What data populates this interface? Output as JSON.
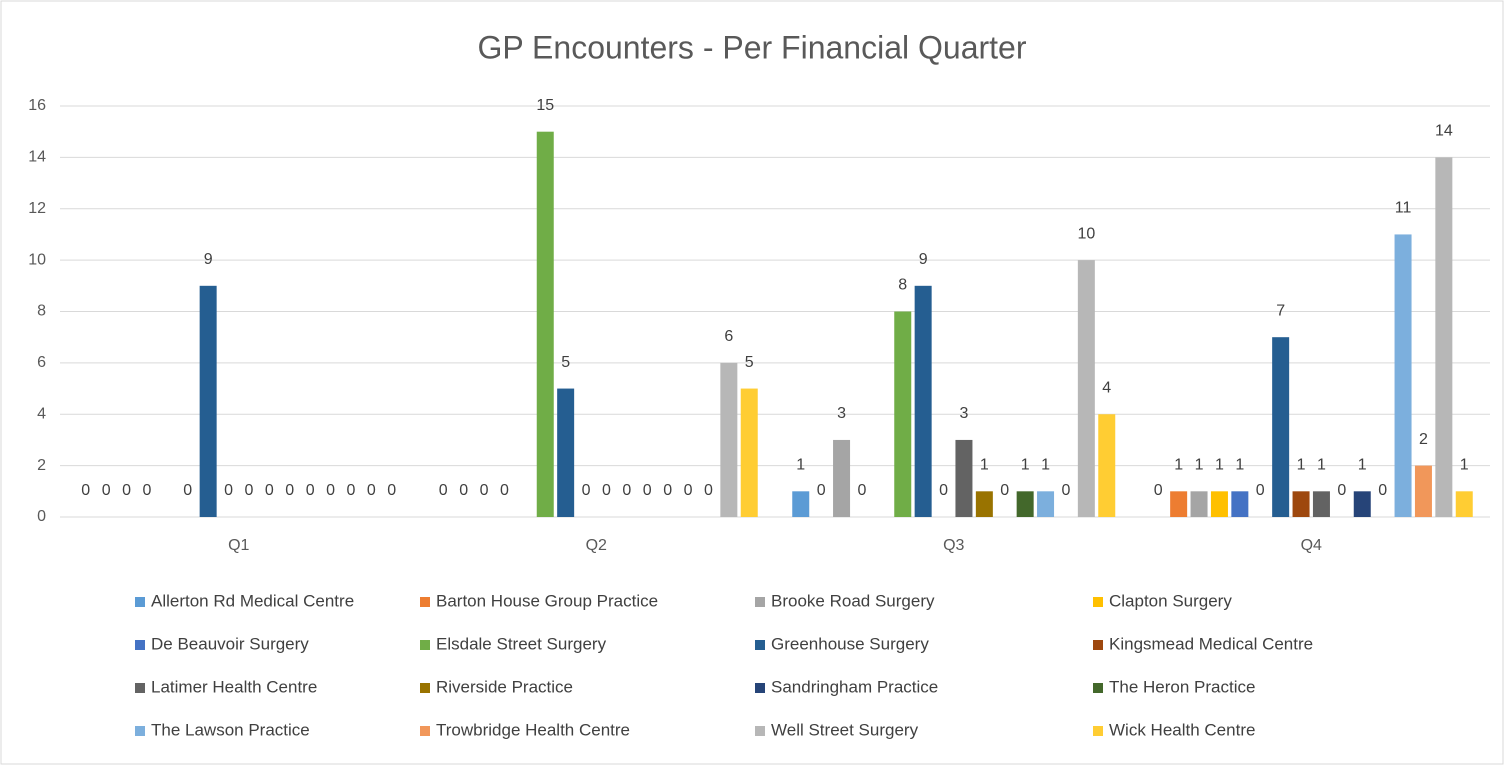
{
  "chart_data": {
    "type": "bar",
    "title": "GP Encounters - Per Financial Quarter",
    "categories": [
      "Q1",
      "Q2",
      "Q3",
      "Q4"
    ],
    "series": [
      {
        "name": "Allerton Rd Medical Centre",
        "color": "#5B9BD5",
        "values": [
          0,
          0,
          1,
          0
        ]
      },
      {
        "name": "Barton House Group Practice",
        "color": "#ED7D31",
        "values": [
          0,
          0,
          0,
          1
        ]
      },
      {
        "name": "Brooke Road Surgery",
        "color": "#A5A5A5",
        "values": [
          0,
          0,
          3,
          1
        ]
      },
      {
        "name": "Clapton Surgery",
        "color": "#FFC000",
        "values": [
          0,
          0,
          0,
          1
        ]
      },
      {
        "name": "De Beauvoir Surgery",
        "color": "#4472C4",
        "values": [
          null,
          null,
          null,
          1
        ]
      },
      {
        "name": "Elsdale Street Surgery",
        "color": "#70AD47",
        "values": [
          0,
          15,
          8,
          0
        ]
      },
      {
        "name": "Greenhouse Surgery",
        "color": "#255E91",
        "values": [
          9,
          5,
          9,
          7
        ]
      },
      {
        "name": "Kingsmead Medical Centre",
        "color": "#9E480E",
        "values": [
          0,
          0,
          0,
          1
        ]
      },
      {
        "name": "Latimer Health Centre",
        "color": "#636363",
        "values": [
          0,
          0,
          3,
          1
        ]
      },
      {
        "name": "Riverside Practice",
        "color": "#997300",
        "values": [
          0,
          0,
          1,
          0
        ]
      },
      {
        "name": "Sandringham Practice",
        "color": "#264478",
        "values": [
          0,
          0,
          0,
          1
        ]
      },
      {
        "name": "The Heron Practice",
        "color": "#43682B",
        "values": [
          0,
          0,
          1,
          0
        ]
      },
      {
        "name": "The Lawson Practice",
        "color": "#7CAFDD",
        "values": [
          0,
          0,
          1,
          11
        ]
      },
      {
        "name": "Trowbridge Health Centre",
        "color": "#F1975A",
        "values": [
          0,
          0,
          0,
          2
        ]
      },
      {
        "name": "Well Street Surgery",
        "color": "#B7B7B7",
        "values": [
          0,
          6,
          10,
          14
        ]
      },
      {
        "name": "Wick Health Centre",
        "color": "#FFCD33",
        "values": [
          0,
          5,
          4,
          1
        ]
      }
    ],
    "ylim": [
      0,
      16
    ],
    "yticks": [
      0,
      2,
      4,
      6,
      8,
      10,
      12,
      14,
      16
    ],
    "grid": true,
    "legend": "bottom"
  }
}
